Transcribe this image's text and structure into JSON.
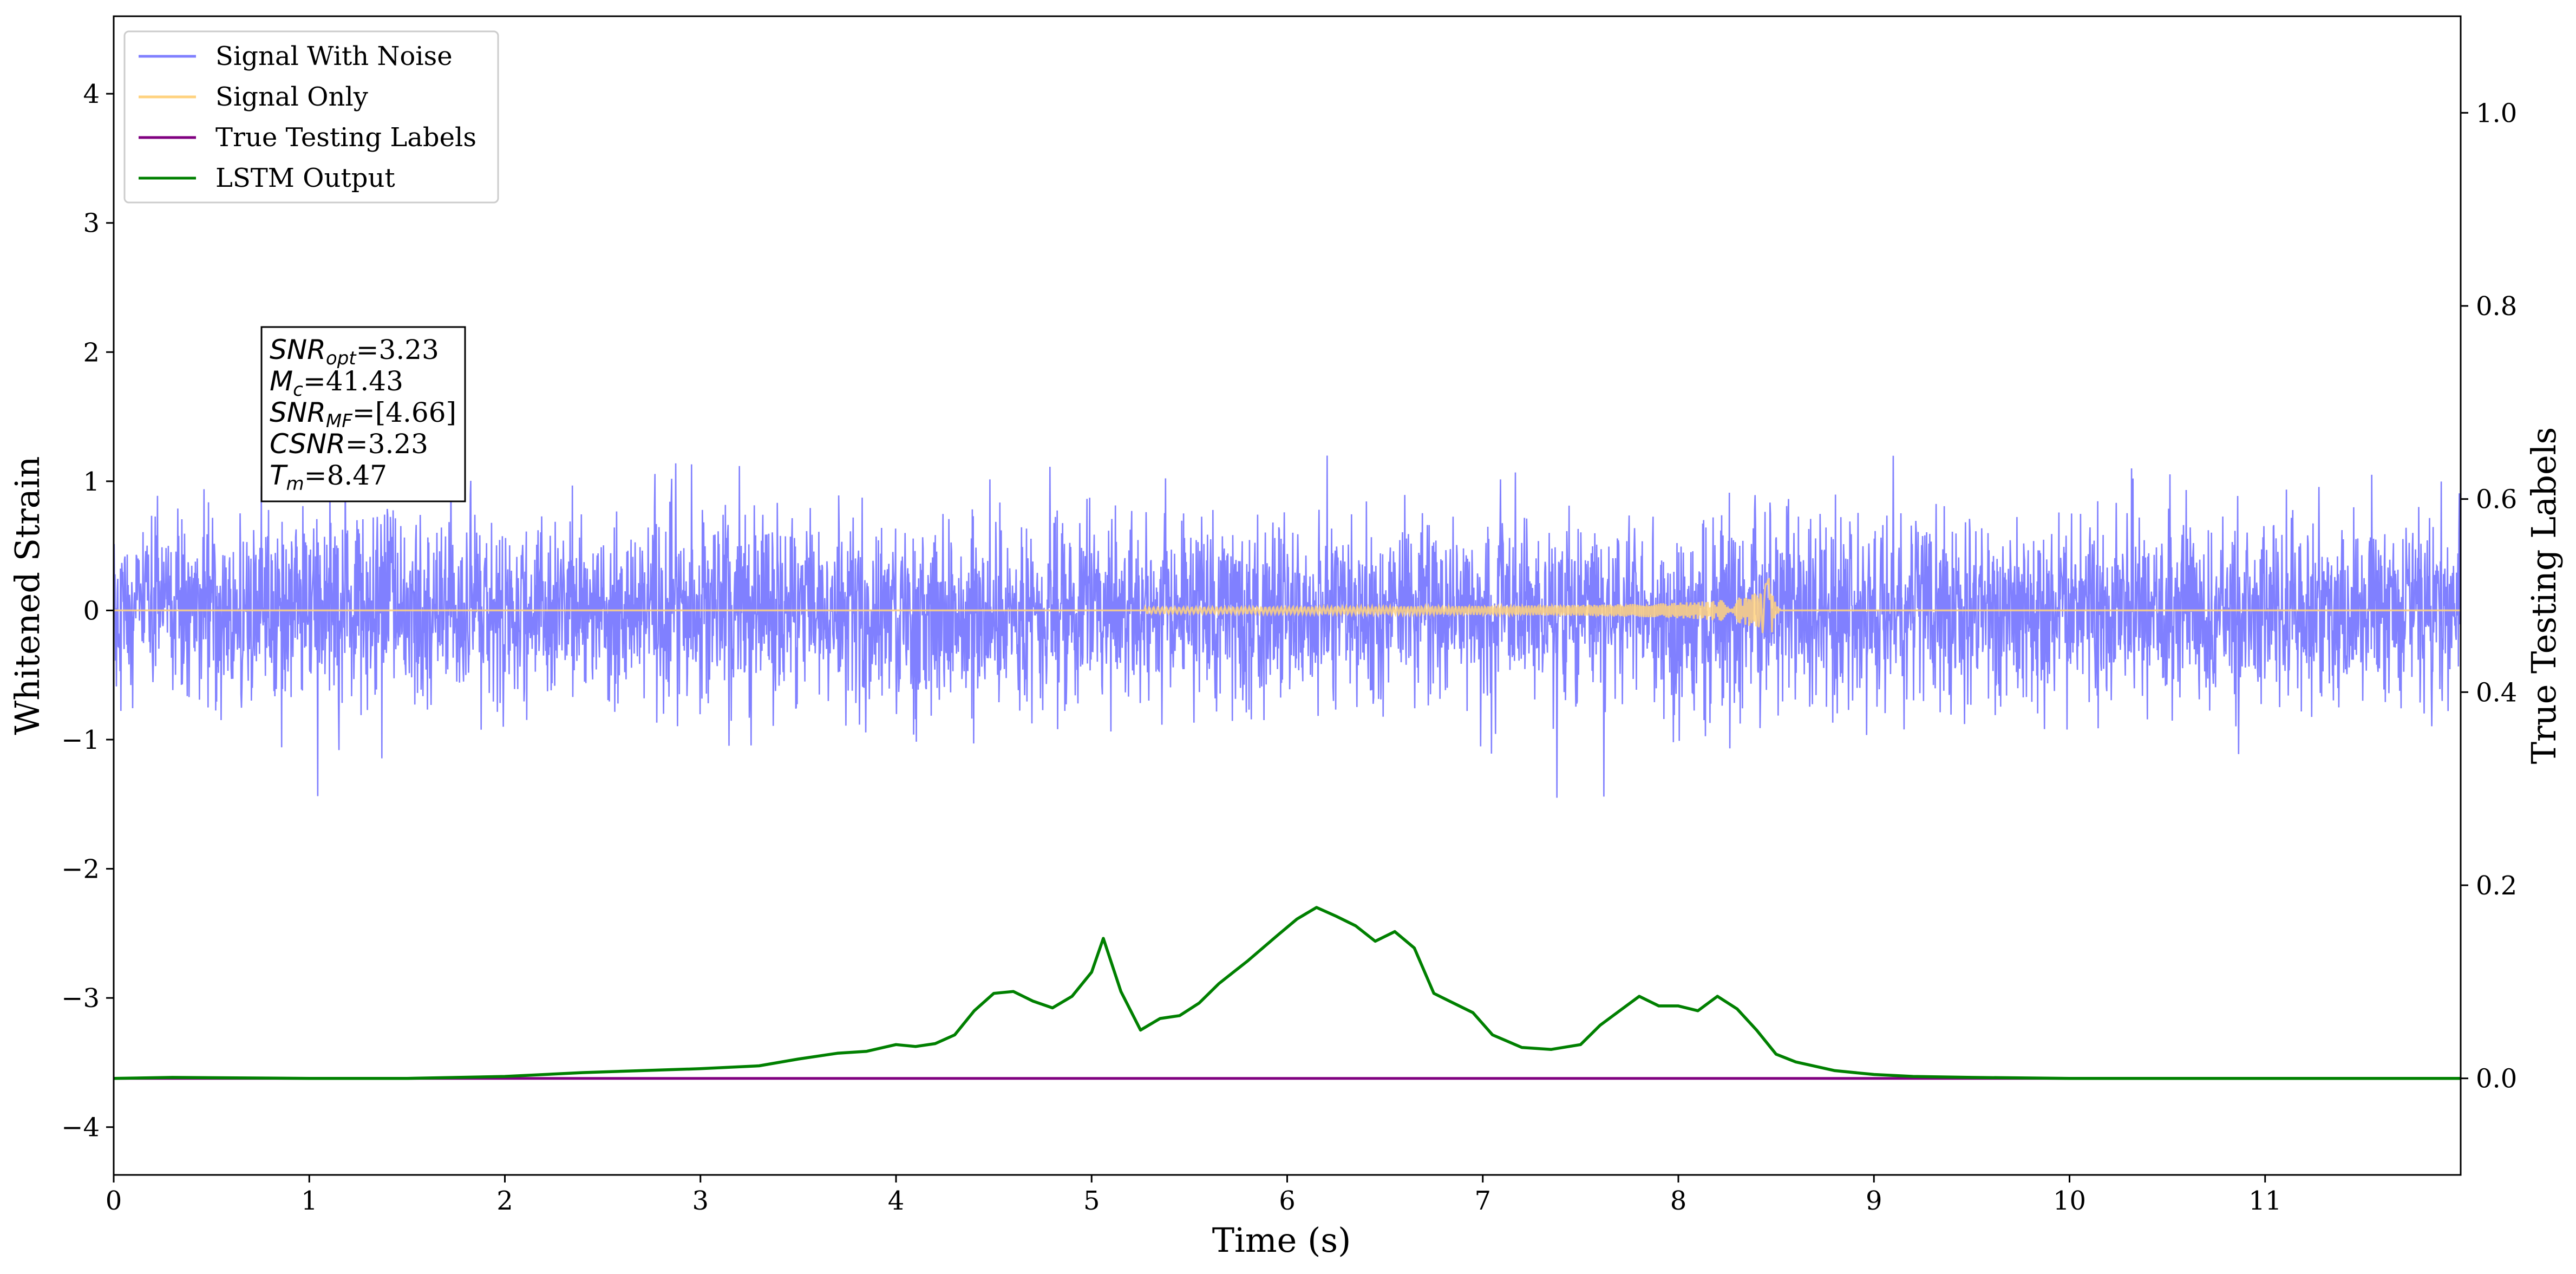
{
  "chart_data": {
    "type": "line",
    "xlabel": "Time (s)",
    "ylabel": "Whitened Strain",
    "ylabel_right": "True Testing Labels",
    "xlim": [
      0,
      12
    ],
    "ylim": [
      -4.37,
      4.6
    ],
    "ylim_right": [
      -0.1,
      1.1
    ],
    "xticks": [
      0,
      1,
      2,
      3,
      4,
      5,
      6,
      7,
      8,
      9,
      10,
      11
    ],
    "yticks": [
      -4,
      -3,
      -2,
      -1,
      0,
      1,
      2,
      3,
      4
    ],
    "yticks_right": [
      0.0,
      0.2,
      0.4,
      0.6,
      0.8,
      1.0
    ],
    "legend_position": "top-left",
    "colors": {
      "signal_with_noise": "#8080ff",
      "signal_only": "#ffd27f",
      "true_labels": "#800080",
      "lstm": "#008000"
    },
    "series": [
      {
        "name": "Signal With Noise",
        "axis": "left",
        "description": "dense whitened noise spanning roughly -1.4 to 1.6 over 0–12 s"
      },
      {
        "name": "Signal Only",
        "axis": "left",
        "chirp_end_time": 8.47,
        "chirp_peak_amplitude": 0.3
      },
      {
        "name": "True Testing Labels",
        "axis": "right",
        "x": [
          0,
          12
        ],
        "y": [
          0.0,
          0.0
        ]
      },
      {
        "name": "LSTM Output",
        "axis": "right",
        "x": [
          0,
          0.3,
          1.0,
          1.5,
          2.0,
          2.4,
          2.7,
          3.0,
          3.3,
          3.5,
          3.7,
          3.85,
          4.0,
          4.1,
          4.2,
          4.3,
          4.4,
          4.5,
          4.6,
          4.7,
          4.8,
          4.9,
          5.0,
          5.06,
          5.15,
          5.25,
          5.35,
          5.45,
          5.55,
          5.65,
          5.8,
          5.95,
          6.05,
          6.15,
          6.25,
          6.35,
          6.45,
          6.55,
          6.65,
          6.75,
          6.85,
          6.95,
          7.05,
          7.2,
          7.35,
          7.5,
          7.6,
          7.7,
          7.8,
          7.9,
          8.0,
          8.1,
          8.2,
          8.3,
          8.4,
          8.5,
          8.6,
          8.8,
          9.0,
          9.2,
          9.5,
          10.0,
          11.0,
          12.0
        ],
        "y": [
          0.0,
          0.001,
          0.0,
          0.0,
          0.002,
          0.006,
          0.008,
          0.01,
          0.013,
          0.02,
          0.026,
          0.028,
          0.035,
          0.033,
          0.036,
          0.045,
          0.07,
          0.088,
          0.09,
          0.08,
          0.073,
          0.085,
          0.11,
          0.145,
          0.09,
          0.05,
          0.062,
          0.065,
          0.078,
          0.098,
          0.122,
          0.148,
          0.165,
          0.177,
          0.168,
          0.158,
          0.142,
          0.152,
          0.135,
          0.088,
          0.078,
          0.068,
          0.045,
          0.032,
          0.03,
          0.035,
          0.055,
          0.07,
          0.085,
          0.075,
          0.075,
          0.07,
          0.085,
          0.072,
          0.05,
          0.025,
          0.017,
          0.008,
          0.004,
          0.002,
          0.001,
          0.0,
          0.0,
          0.0
        ]
      }
    ],
    "annotation": {
      "lines": [
        {
          "sym": "SNR",
          "sub": "opt",
          "value": "=3.23"
        },
        {
          "sym": "M",
          "sub": "c",
          "value": "=41.43"
        },
        {
          "sym": "SNR",
          "sub": "MF",
          "value": "=[4.66]"
        },
        {
          "sym": "CSNR",
          "sub": "",
          "value": "=3.23"
        },
        {
          "sym": "T",
          "sub": "m",
          "value": "=8.47"
        }
      ]
    }
  }
}
